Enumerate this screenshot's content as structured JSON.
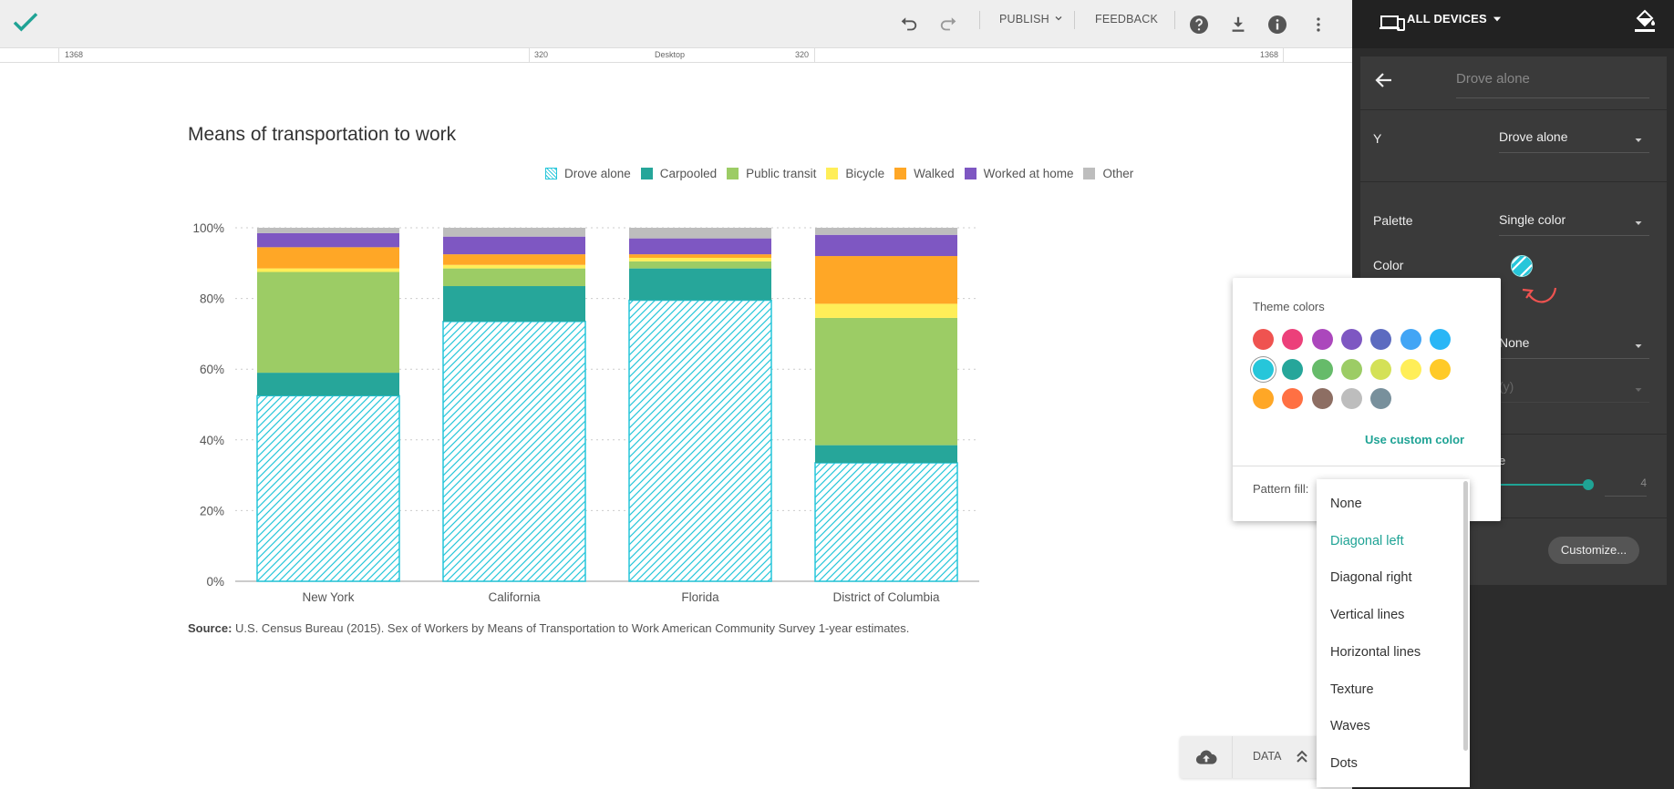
{
  "toolbar": {
    "publish_label": "PUBLISH",
    "feedback_label": "FEEDBACK",
    "icons": [
      "check-icon",
      "undo-icon",
      "redo-icon",
      "help-icon",
      "download-icon",
      "info-icon",
      "more-vert-icon"
    ]
  },
  "ruler": {
    "left_width": "1368",
    "left_inner": "320",
    "center_label": "Desktop",
    "right_inner": "320",
    "right_width": "1368"
  },
  "chart_data": {
    "type": "bar",
    "stacked": true,
    "title": "Means of transportation to work",
    "categories": [
      "New York",
      "California",
      "Florida",
      "District of Columbia"
    ],
    "ylim": [
      0,
      100
    ],
    "yticks": [
      "0%",
      "20%",
      "40%",
      "60%",
      "80%",
      "100%"
    ],
    "grid": true,
    "legend_position": "top-right",
    "series": [
      {
        "name": "Drove alone",
        "color": "#26c6da",
        "pattern": "diagonal",
        "values": [
          52.5,
          73.5,
          79.5,
          33.5
        ]
      },
      {
        "name": "Carpooled",
        "color": "#26a69a",
        "values": [
          6.5,
          10,
          9,
          5
        ]
      },
      {
        "name": "Public transit",
        "color": "#9ccc65",
        "values": [
          28.5,
          5,
          2,
          36
        ]
      },
      {
        "name": "Bicycle",
        "color": "#ffee58",
        "values": [
          1,
          1,
          1,
          4
        ]
      },
      {
        "name": "Walked",
        "color": "#ffa726",
        "values": [
          6,
          3,
          1,
          13.5
        ]
      },
      {
        "name": "Worked at home",
        "color": "#7e57c2",
        "values": [
          4,
          5,
          4.5,
          6
        ]
      },
      {
        "name": "Other",
        "color": "#bdbdbd",
        "values": [
          1.5,
          2.5,
          3,
          2
        ]
      }
    ]
  },
  "source": {
    "label": "Source:",
    "text": " U.S. Census Bureau (2015). Sex of Workers by Means of Transportation to Work American Community Survey 1-year estimates."
  },
  "data_bar": {
    "label": "DATA"
  },
  "sidebar": {
    "devices_label": "ALL DEVICES",
    "series_name": "Drove alone",
    "y_label": "Y",
    "y_value": "Drove alone",
    "palette_label": "Palette",
    "palette_value": "Single color",
    "color_label": "Color",
    "partial_value_1": "None",
    "partial_value_2": "(y)",
    "partial_label_3": "e",
    "slider_value": "4",
    "customize_label": "Customize..."
  },
  "color_picker": {
    "title": "Theme colors",
    "colors": [
      "#ef5350",
      "#ec407a",
      "#ab47bc",
      "#7e57c2",
      "#5c6bc0",
      "#42a5f5",
      "#29b6f6",
      "#26c6da",
      "#26a69a",
      "#66bb6a",
      "#9ccc65",
      "#d4e157",
      "#ffee58",
      "#ffca28",
      "#ffa726",
      "#ff7043",
      "#8d6e63",
      "#bdbdbd",
      "#78909c"
    ],
    "selected_index": 7,
    "custom_label": "Use custom color",
    "pattern_label": "Pattern fill:"
  },
  "pattern_dropdown": {
    "options": [
      "None",
      "Diagonal left",
      "Diagonal right",
      "Vertical lines",
      "Horizontal lines",
      "Texture",
      "Waves",
      "Dots"
    ],
    "selected_index": 1
  }
}
